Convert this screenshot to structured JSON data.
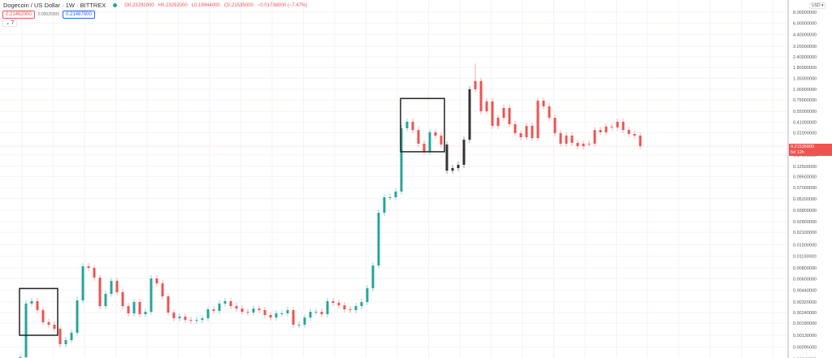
{
  "header": {
    "symbol": "Dogecoin / US Dollar · 1W · BITTREX",
    "open": "O0.23292000",
    "high": "H0.23292000",
    "low": "L0.19944000",
    "close": "C0.21535000",
    "change": "−0.01738000 (−7.47%)",
    "sell_price": "0.21462000",
    "spread": "0.00025000",
    "buy_price": "0.21487000",
    "indicators_toggle": "⌄ 7",
    "market_status_color": "#26a69a"
  },
  "axis": {
    "currency_button": "USD ▾",
    "last_price_label": "0.21535000",
    "countdown": "5d 12h"
  },
  "chart_data": {
    "type": "candlestick",
    "title": "Dogecoin / US Dollar · 1W · BITTREX",
    "y_scale": "log",
    "ylim": [
      0.00068,
      8.0
    ],
    "grid": true,
    "legend": "none",
    "y_ticks": [
      "8.00000000",
      "6.00000000",
      "4.40000000",
      "3.20000000",
      "2.40000000",
      "1.80000000",
      "1.35000000",
      "1.00000000",
      "0.75000000",
      "0.55000000",
      "0.41000000",
      "0.31000000",
      "0.17000000",
      "0.12500000",
      "0.09500000",
      "0.07000000",
      "0.05200000",
      "0.03800000",
      "0.02800000",
      "0.02100000",
      "0.01500000",
      "0.01100000",
      "0.00800000",
      "0.00600000",
      "0.00440000",
      "0.00320000",
      "0.00240000",
      "0.00180000",
      "0.00130000",
      "0.00095000",
      "0.00068000"
    ],
    "closes": [
      0.000719,
      0.00306,
      0.00327,
      0.00257,
      0.00185,
      0.00173,
      0.00155,
      0.00102,
      0.00114,
      0.00139,
      0.00334,
      0.00838,
      0.00802,
      0.00617,
      0.00286,
      0.00398,
      0.00565,
      0.00416,
      0.00286,
      0.00235,
      0.00319,
      0.0023,
      0.00245,
      0.00604,
      0.00528,
      0.00372,
      0.0024,
      0.00206,
      0.00215,
      0.00197,
      0.00193,
      0.00197,
      0.00206,
      0.00262,
      0.00251,
      0.00306,
      0.00327,
      0.00286,
      0.00268,
      0.00245,
      0.0024,
      0.00268,
      0.00257,
      0.00225,
      0.0021,
      0.00235,
      0.00235,
      0.00257,
      0.00173,
      0.00173,
      0.0021,
      0.00245,
      0.00245,
      0.0023,
      0.00327,
      0.00313,
      0.00292,
      0.00262,
      0.00257,
      0.00286,
      0.00319,
      0.00463,
      0.00857,
      0.0356,
      0.0541,
      0.0541,
      0.0631,
      0.349,
      0.416,
      0.333,
      0.23,
      0.185,
      0.313,
      0.286,
      0.225,
      0.111,
      0.119,
      0.13,
      0.256,
      1.0,
      1.25,
      0.553,
      0.72,
      0.372,
      0.463,
      0.604,
      0.389,
      0.305,
      0.274,
      0.372,
      0.268,
      0.735,
      0.631,
      0.463,
      0.305,
      0.23,
      0.286,
      0.235,
      0.215,
      0.23,
      0.23,
      0.333,
      0.313,
      0.365,
      0.357,
      0.416,
      0.333,
      0.299,
      0.286,
      0.21535
    ],
    "peak_high": 2.0,
    "last_price": 0.21535,
    "colors": {
      "up": "#26a69a",
      "down": "#ef5350",
      "grid": "#f0f3fa",
      "box": "#222222"
    },
    "colored_segments": [
      {
        "from_index": 75,
        "to_index": 79,
        "color": "#333333"
      },
      {
        "from_index": 80,
        "to_index": 109,
        "color": "#ef5350"
      }
    ],
    "annotation_boxes": [
      {
        "from_index": 0,
        "to_index": 6,
        "price_top": 0.0046,
        "price_bottom": 0.0013
      },
      {
        "from_index": 67,
        "to_index": 74,
        "price_top": 0.78,
        "price_bottom": 0.185
      }
    ]
  }
}
